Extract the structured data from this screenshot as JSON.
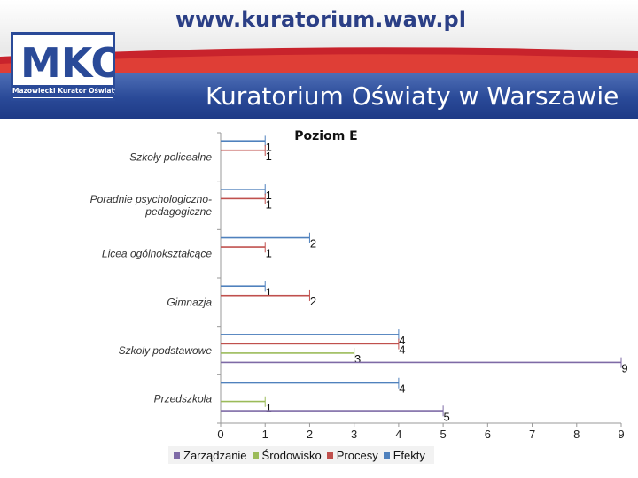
{
  "header": {
    "url": "www.kuratorium.waw.pl",
    "logo_letters": "MKO",
    "logo_caption": "Mazowiecki Kurator Oświaty",
    "title": "Kuratorium Oświaty w Warszawie"
  },
  "colors": {
    "banner": "#2a4a98",
    "Zarządzanie": "#7e6aa6",
    "Środowisko": "#9bbb59",
    "Procesy": "#c0504d",
    "Efekty": "#4f81bd"
  },
  "chart_data": {
    "type": "bar",
    "orientation": "horizontal",
    "title": "Poziom E",
    "categories": [
      "Szkoły policealne",
      "Poradnie psychologiczno-pedagogiczne",
      "Licea ogólnokształcące",
      "Gimnazja",
      "Szkoły podstawowe",
      "Przedszkola"
    ],
    "category_label_lines": [
      [
        "Szkoły policealne"
      ],
      [
        "Poradnie psychologiczno-",
        "pedagogiczne"
      ],
      [
        "Licea ogólnokształcące"
      ],
      [
        "Gimnazja"
      ],
      [
        "Szkoły podstawowe"
      ],
      [
        "Przedszkola"
      ]
    ],
    "series": [
      {
        "name": "Zarządzanie",
        "values": [
          null,
          null,
          null,
          null,
          9,
          5
        ]
      },
      {
        "name": "Środowisko",
        "values": [
          null,
          null,
          null,
          null,
          3,
          1
        ]
      },
      {
        "name": "Procesy",
        "values": [
          1,
          1,
          1,
          2,
          4,
          null
        ]
      },
      {
        "name": "Efekty",
        "values": [
          1,
          1,
          2,
          1,
          4,
          4
        ]
      }
    ],
    "xlim": [
      0,
      9
    ],
    "xticks": [
      0,
      1,
      2,
      3,
      4,
      5,
      6,
      7,
      8,
      9
    ],
    "legend_position": "bottom",
    "grid": false
  }
}
